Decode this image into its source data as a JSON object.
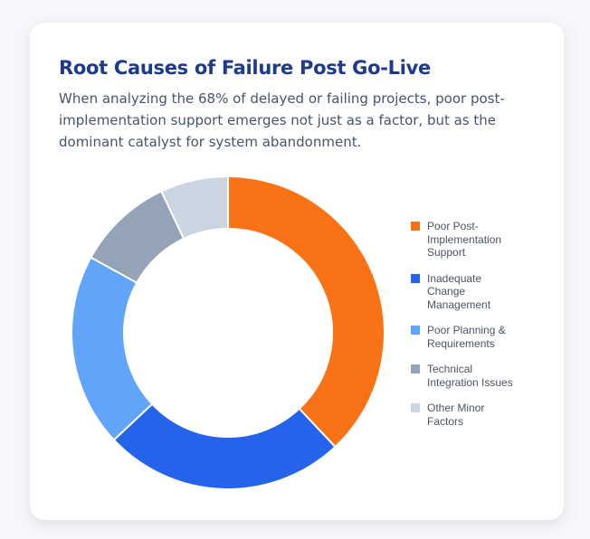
{
  "header": {
    "title": "Root Causes of Failure Post Go-Live",
    "subtitle": "When analyzing the 68% of delayed or failing projects, poor post-implementation support emerges not just as a factor, but as the dominant catalyst for system abandonment."
  },
  "chart_data": {
    "type": "pie",
    "variant": "doughnut",
    "legend_position": "right",
    "categories": [
      "Poor Post-Implementation Support",
      "Inadequate Change Management",
      "Poor Planning & Requirements",
      "Technical Integration Issues",
      "Other Minor Factors"
    ],
    "values": [
      38,
      25,
      20,
      10,
      7
    ],
    "colors": [
      "#f97316",
      "#2563eb",
      "#60a5fa",
      "#94a3b8",
      "#cbd5e1"
    ]
  }
}
